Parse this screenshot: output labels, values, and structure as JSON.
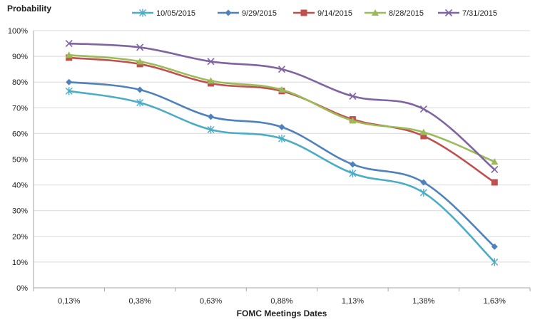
{
  "chart_data": {
    "type": "line",
    "title": "",
    "xlabel": "FOMC Meetings Dates",
    "ylabel": "Probability",
    "categories": [
      "0,13%",
      "0,38%",
      "0,63%",
      "0,88%",
      "1,13%",
      "1,38%",
      "1,63%"
    ],
    "ylim": [
      0,
      100
    ],
    "yticks": [
      "0%",
      "10%",
      "20%",
      "30%",
      "40%",
      "50%",
      "60%",
      "70%",
      "80%",
      "90%",
      "100%"
    ],
    "grid": true,
    "legend_position": "top",
    "series": [
      {
        "name": "10/05/2015",
        "color": "#4bacc6",
        "marker": "asterisk",
        "values": [
          76.5,
          72,
          61.5,
          58,
          44.5,
          37,
          10
        ]
      },
      {
        "name": "9/29/2015",
        "color": "#4f81bd",
        "marker": "diamond",
        "values": [
          80,
          77,
          66.5,
          62.5,
          48,
          41,
          16
        ]
      },
      {
        "name": "9/14/2015",
        "color": "#c0504d",
        "marker": "square",
        "values": [
          89.5,
          87,
          79.5,
          76.5,
          65.5,
          59,
          41
        ]
      },
      {
        "name": "8/28/2015",
        "color": "#9bbb59",
        "marker": "triangle",
        "values": [
          90.5,
          88,
          80.5,
          77,
          65,
          60.5,
          49
        ]
      },
      {
        "name": "7/31/2015",
        "color": "#8064a2",
        "marker": "x",
        "values": [
          95,
          93.5,
          88,
          85,
          74.5,
          69.5,
          46
        ]
      }
    ]
  }
}
